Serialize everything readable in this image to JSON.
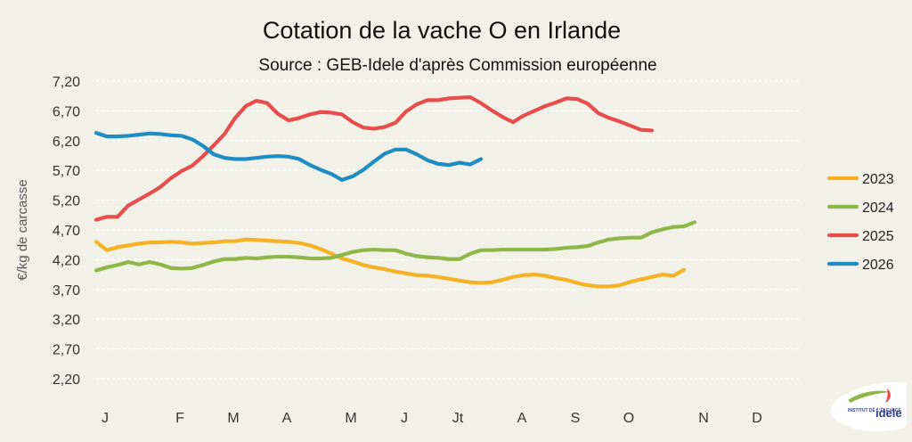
{
  "chart_data": {
    "type": "line",
    "title": "Cotation de la vache O en Irlande",
    "subtitle": "Source : GEB-Idele d'après Commission européenne",
    "ylabel": "€/kg de carcasse",
    "xlabel": "",
    "ylim": [
      2.2,
      7.2
    ],
    "yticks": [
      "7,20",
      "6,70",
      "6,20",
      "5,70",
      "5,20",
      "4,70",
      "4,20",
      "3,70",
      "3,20",
      "2,70",
      "2,20"
    ],
    "ytick_values": [
      7.2,
      6.7,
      6.2,
      5.7,
      5.2,
      4.7,
      4.2,
      3.7,
      3.2,
      2.7,
      2.2
    ],
    "week_count": 52,
    "month_labels": [
      {
        "label": "J",
        "week": 1
      },
      {
        "label": "F",
        "week": 8
      },
      {
        "label": "M",
        "week": 13
      },
      {
        "label": "A",
        "week": 18
      },
      {
        "label": "M",
        "week": 24
      },
      {
        "label": "J",
        "week": 29
      },
      {
        "label": "Jt",
        "week": 34
      },
      {
        "label": "A",
        "week": 40
      },
      {
        "label": "S",
        "week": 45
      },
      {
        "label": "O",
        "week": 50
      },
      {
        "label": "N",
        "week": 57
      },
      {
        "label": "D",
        "week": 62
      }
    ],
    "grid": true,
    "legend_position": "right",
    "series": [
      {
        "name": "2023",
        "color": "#f5b225",
        "values": [
          4.5,
          4.36,
          4.41,
          4.44,
          4.47,
          4.49,
          4.49,
          4.5,
          4.49,
          4.47,
          4.48,
          4.49,
          4.51,
          4.51,
          4.54,
          4.53,
          4.52,
          4.51,
          4.5,
          4.48,
          4.44,
          4.38,
          4.3,
          4.22,
          4.17,
          4.11,
          4.07,
          4.04,
          4.0,
          3.97,
          3.94,
          3.93,
          3.91,
          3.88,
          3.85,
          3.82,
          3.81,
          3.82,
          3.86,
          3.91,
          3.94,
          3.95,
          3.93,
          3.89,
          3.86,
          3.81,
          3.77,
          3.75,
          3.75,
          3.77,
          3.83,
          3.87,
          3.91,
          3.95,
          3.93,
          4.03
        ]
      },
      {
        "name": "2024",
        "color": "#8db849",
        "values": [
          4.02,
          4.07,
          4.11,
          4.16,
          4.12,
          4.16,
          4.12,
          4.06,
          4.05,
          4.06,
          4.11,
          4.17,
          4.21,
          4.21,
          4.23,
          4.22,
          4.24,
          4.25,
          4.25,
          4.24,
          4.22,
          4.22,
          4.23,
          4.28,
          4.33,
          4.36,
          4.37,
          4.36,
          4.36,
          4.3,
          4.26,
          4.24,
          4.23,
          4.21,
          4.21,
          4.3,
          4.36,
          4.36,
          4.37,
          4.37,
          4.37,
          4.37,
          4.37,
          4.38,
          4.4,
          4.41,
          4.43,
          4.49,
          4.54,
          4.56,
          4.57,
          4.57,
          4.66,
          4.71,
          4.75,
          4.76,
          4.83
        ]
      },
      {
        "name": "2025",
        "color": "#e84d4e",
        "values": [
          4.87,
          4.92,
          4.92,
          5.11,
          5.21,
          5.31,
          5.42,
          5.57,
          5.69,
          5.78,
          5.94,
          6.12,
          6.31,
          6.58,
          6.78,
          6.87,
          6.83,
          6.65,
          6.54,
          6.58,
          6.64,
          6.68,
          6.67,
          6.64,
          6.51,
          6.42,
          6.4,
          6.43,
          6.5,
          6.69,
          6.81,
          6.88,
          6.88,
          6.91,
          6.92,
          6.93,
          6.83,
          6.71,
          6.6,
          6.51,
          6.62,
          6.7,
          6.78,
          6.84,
          6.91,
          6.9,
          6.82,
          6.66,
          6.58,
          6.52,
          6.45,
          6.38,
          6.37
        ]
      },
      {
        "name": "2026",
        "color": "#1f8dc1",
        "values": [
          6.33,
          6.27,
          6.27,
          6.28,
          6.3,
          6.32,
          6.31,
          6.29,
          6.28,
          6.22,
          6.11,
          5.97,
          5.91,
          5.89,
          5.89,
          5.91,
          5.93,
          5.94,
          5.93,
          5.89,
          5.79,
          5.71,
          5.64,
          5.54,
          5.6,
          5.71,
          5.85,
          5.98,
          6.05,
          6.05,
          5.97,
          5.87,
          5.81,
          5.79,
          5.83,
          5.8,
          5.89
        ]
      }
    ]
  },
  "logo": {
    "small_text": "INSTITUT DE L'ÉLEVAGE",
    "brand": "idele"
  }
}
